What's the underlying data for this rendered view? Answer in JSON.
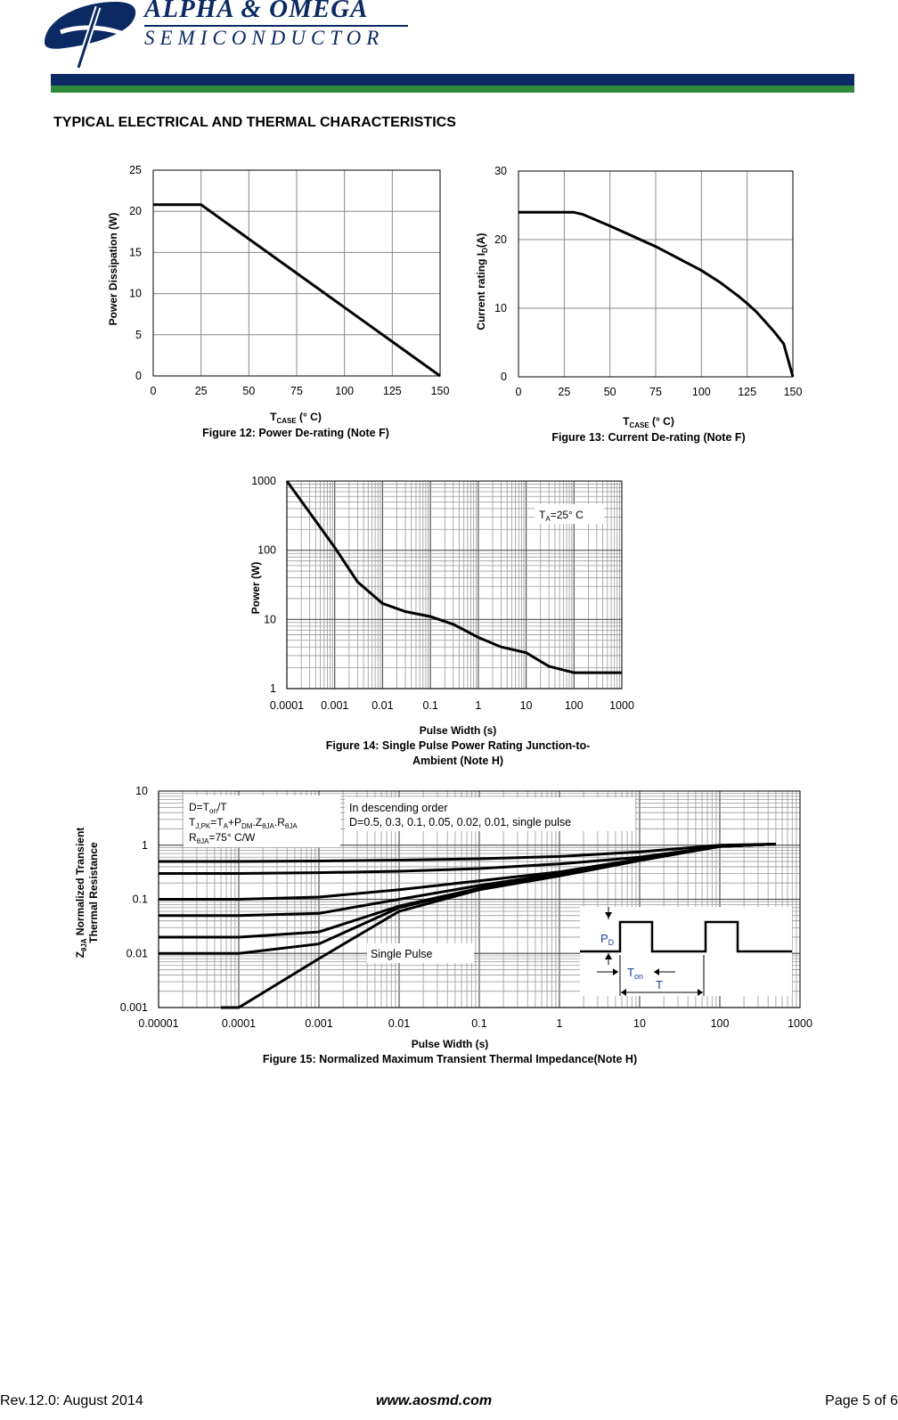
{
  "header": {
    "company_line1": "ALPHA & OMEGA",
    "company_line2": "SEMICONDUCTOR",
    "brand_colors": {
      "navy": "#0b2a63",
      "green": "#2e8a3a"
    },
    "logo_icon": "aos-logo-icon"
  },
  "section_title": "TYPICAL ELECTRICAL AND THERMAL CHARACTERISTICS",
  "footer": {
    "revision": "Rev.12.0: August 2014",
    "website": "www.aosmd.com",
    "page": "Page 5 of 6"
  },
  "chart_data": [
    {
      "id": "fig12",
      "type": "line",
      "title": "Figure 12: Power De-rating (Note F)",
      "xlabel_main": "T",
      "xlabel_sub": "CASE",
      "xlabel_rest": " (° C)",
      "ylabel": "Power Dissipation (W)",
      "xlim": [
        0,
        150
      ],
      "ylim": [
        0,
        25
      ],
      "xticks": [
        "0",
        "25",
        "50",
        "75",
        "100",
        "125",
        "150"
      ],
      "yticks": [
        "0",
        "5",
        "10",
        "15",
        "20",
        "25"
      ],
      "grid": true,
      "x": [
        0,
        25,
        150
      ],
      "y": [
        20.8,
        20.8,
        0
      ]
    },
    {
      "id": "fig13",
      "type": "line",
      "title": "Figure 13: Current De-rating (Note F)",
      "xlabel_main": "T",
      "xlabel_sub": "CASE",
      "xlabel_rest": " (° C)",
      "ylabel_main": "Current rating I",
      "ylabel_sub": "D",
      "ylabel_rest": "(A)",
      "xlim": [
        0,
        150
      ],
      "ylim": [
        0,
        30
      ],
      "xticks": [
        "0",
        "25",
        "50",
        "75",
        "100",
        "125",
        "150"
      ],
      "yticks": [
        "0",
        "10",
        "20",
        "30"
      ],
      "grid": true,
      "x": [
        0,
        25,
        30,
        35,
        50,
        75,
        100,
        110,
        120,
        125,
        130,
        135,
        140,
        145,
        150
      ],
      "y": [
        24,
        24,
        24,
        23.7,
        22,
        19,
        15.5,
        13.8,
        11.8,
        10.7,
        9.5,
        8,
        6.5,
        4.8,
        0
      ]
    },
    {
      "id": "fig14",
      "type": "line",
      "title_line1": "Figure 14: Single Pulse Power Rating Junction-to-",
      "title_line2": "Ambient (Note H)",
      "xlabel": "Pulse Width (s)",
      "ylabel": "Power (W)",
      "xscale": "log",
      "yscale": "log",
      "xlim": [
        0.0001,
        1000
      ],
      "ylim": [
        1,
        1000
      ],
      "xticks": [
        "0.0001",
        "0.001",
        "0.01",
        "0.1",
        "1",
        "10",
        "100",
        "1000"
      ],
      "yticks": [
        "1",
        "10",
        "100",
        "1000"
      ],
      "grid": true,
      "annotation_main": "T",
      "annotation_sub": "A",
      "annotation_rest": "=25° C",
      "x": [
        0.0001,
        0.0003,
        0.001,
        0.003,
        0.01,
        0.03,
        0.1,
        0.3,
        1,
        3,
        10,
        30,
        100,
        300,
        1000
      ],
      "y": [
        1000,
        350,
        110,
        35,
        17,
        13,
        11,
        8.5,
        5.5,
        4,
        3.3,
        2.1,
        1.7,
        1.7,
        1.7
      ]
    },
    {
      "id": "fig15",
      "type": "line",
      "title": "Figure 15: Normalized Maximum Transient Thermal Impedance(Note H)",
      "xlabel": "Pulse Width (s)",
      "ylabel_line1_main": "Z",
      "ylabel_line1_sub": "θJA",
      "ylabel_line1_rest": " Normalized Transient",
      "ylabel_line2": "Thermal Resistance",
      "xscale": "log",
      "yscale": "log",
      "xlim": [
        1e-05,
        1000
      ],
      "ylim": [
        0.001,
        10
      ],
      "xticks": [
        "0.00001",
        "0.0001",
        "0.001",
        "0.01",
        "0.1",
        "1",
        "10",
        "100",
        "1000"
      ],
      "yticks": [
        "0.001",
        "0.01",
        "0.1",
        "1",
        "10"
      ],
      "grid": true,
      "note_box": {
        "line1": "D=T",
        "line1_sub": "on",
        "line1_rest": "/T",
        "line2_a": "T",
        "line2_a_sub": "J,PK",
        "line2_b": "=T",
        "line2_b_sub": "A",
        "line2_c": "+P",
        "line2_c_sub": "DM",
        "line2_d": ".Z",
        "line2_d_sub": "θJA",
        "line2_e": ".R",
        "line2_e_sub": "θJA",
        "line3_a": "R",
        "line3_a_sub": "θJA",
        "line3_rest": "=75° C/W"
      },
      "order_box": {
        "line1": "In descending order",
        "line2": "D=0.5, 0.3, 0.1, 0.05, 0.02, 0.01, single pulse"
      },
      "single_pulse_label": "Single Pulse",
      "inset": {
        "pd_main": "P",
        "pd_sub": "D",
        "ton_main": "T",
        "ton_sub": "on",
        "t_label": "T"
      },
      "x": [
        1e-05,
        0.0001,
        0.001,
        0.01,
        0.1,
        1,
        10,
        100,
        500
      ],
      "series": [
        {
          "values": [
            0.5,
            0.5,
            0.51,
            0.53,
            0.56,
            0.62,
            0.75,
            1.0,
            1.05
          ]
        },
        {
          "values": [
            0.3,
            0.3,
            0.31,
            0.33,
            0.37,
            0.45,
            0.6,
            0.95,
            1.05
          ]
        },
        {
          "values": [
            0.1,
            0.1,
            0.11,
            0.15,
            0.22,
            0.32,
            0.55,
            0.95,
            1.05
          ]
        },
        {
          "values": [
            0.05,
            0.05,
            0.055,
            0.1,
            0.18,
            0.3,
            0.55,
            0.95,
            1.05
          ]
        },
        {
          "values": [
            0.02,
            0.02,
            0.025,
            0.075,
            0.16,
            0.29,
            0.54,
            0.95,
            1.05
          ]
        },
        {
          "values": [
            0.01,
            0.01,
            0.015,
            0.07,
            0.16,
            0.28,
            0.53,
            0.95,
            1.05
          ]
        },
        {
          "values": [
            0.0007,
            0.001,
            0.008,
            0.06,
            0.15,
            0.27,
            0.52,
            0.95,
            1.05
          ]
        }
      ]
    }
  ]
}
